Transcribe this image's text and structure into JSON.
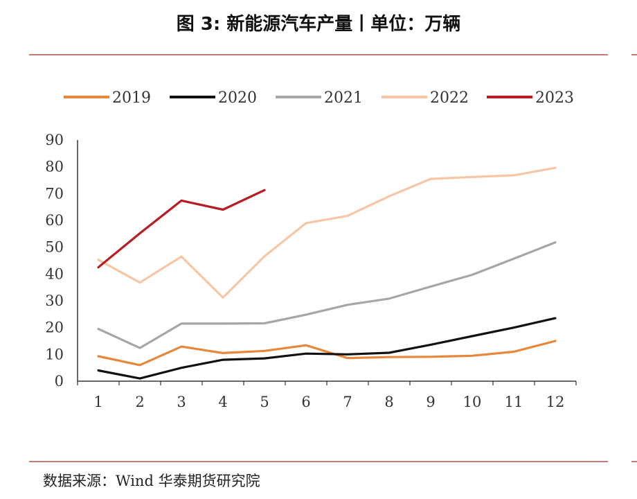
{
  "title": "图 3: 新能源汽车产量丨单位：万辆",
  "source": "数据来源：Wind 华泰期货研究院",
  "chart_data": {
    "type": "line",
    "title": "图 3: 新能源汽车产量丨单位：万辆",
    "xlabel": "",
    "ylabel": "",
    "x": [
      1,
      2,
      3,
      4,
      5,
      6,
      7,
      8,
      9,
      10,
      11,
      12
    ],
    "ylim": [
      0,
      90
    ],
    "yticks": [
      0,
      10,
      20,
      30,
      40,
      50,
      60,
      70,
      80,
      90
    ],
    "grid": false,
    "legend_position": "top",
    "series": [
      {
        "name": "2019",
        "color": "#e8863a",
        "values": [
          9.3,
          6.0,
          12.9,
          10.5,
          11.3,
          13.4,
          8.6,
          9.0,
          9.1,
          9.5,
          11.0,
          15.0
        ]
      },
      {
        "name": "2020",
        "color": "#111111",
        "values": [
          4.0,
          1.0,
          5.0,
          8.0,
          8.5,
          10.3,
          10.0,
          10.6,
          13.6,
          16.8,
          20.0,
          23.5
        ]
      },
      {
        "name": "2021",
        "color": "#a6a6a6",
        "values": [
          19.5,
          12.4,
          21.5,
          21.5,
          21.6,
          24.8,
          28.5,
          30.8,
          35.3,
          39.7,
          45.7,
          51.8
        ]
      },
      {
        "name": "2022",
        "color": "#f8c6a4",
        "values": [
          45.3,
          36.8,
          46.5,
          31.2,
          46.6,
          59.0,
          61.7,
          69.0,
          75.5,
          76.2,
          76.8,
          79.6
        ]
      },
      {
        "name": "2023",
        "color": "#b81c22",
        "values": [
          42.5,
          55.2,
          67.4,
          64.0,
          71.3,
          null,
          null,
          null,
          null,
          null,
          null,
          null
        ]
      }
    ]
  }
}
